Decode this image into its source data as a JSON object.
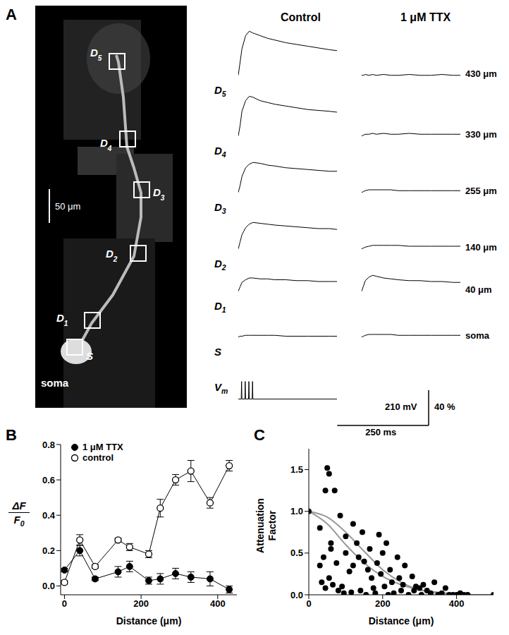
{
  "panels": [
    "A",
    "B",
    "C"
  ],
  "image": {
    "roi_labels": [
      "D5",
      "D4",
      "D3",
      "D2",
      "D1",
      "S"
    ],
    "soma_label": "soma",
    "scale_bar": {
      "value": 50,
      "label": "50 μm"
    }
  },
  "chart_data": [
    {
      "type": "line",
      "label": "A",
      "columns": [
        "Control",
        "1 μM TTX"
      ],
      "tick_labels": false,
      "color": "#000000",
      "x": [
        0,
        5,
        10,
        20,
        30,
        40,
        60,
        80,
        100,
        130,
        160,
        190,
        220,
        250,
        270
      ],
      "xlim": [
        0,
        270
      ],
      "ylim": [
        -5,
        55
      ],
      "traces": [
        {
          "name": "D5",
          "distance": "430 μm",
          "control": [
            0,
            15,
            30,
            45,
            50,
            48,
            45,
            42,
            40,
            37,
            35,
            33,
            31,
            29,
            28
          ],
          "ttx": [
            0,
            0,
            1,
            0,
            1,
            0,
            1,
            0,
            0,
            1,
            0,
            0,
            1,
            0,
            0
          ]
        },
        {
          "name": "D4",
          "distance": "330 μm",
          "control": [
            0,
            12,
            28,
            40,
            45,
            44,
            40,
            38,
            36,
            34,
            32,
            30,
            29,
            28,
            27
          ],
          "ttx": [
            0,
            1,
            2,
            2,
            3,
            2,
            3,
            2,
            2,
            3,
            2,
            2,
            2,
            2,
            2
          ]
        },
        {
          "name": "D3",
          "distance": "255 μm",
          "control": [
            0,
            8,
            18,
            28,
            32,
            34,
            33,
            31,
            30,
            28,
            27,
            26,
            25,
            24,
            24
          ],
          "ttx": [
            0,
            1,
            2,
            3,
            3,
            3,
            3,
            3,
            2,
            2,
            2,
            2,
            2,
            2,
            2
          ]
        },
        {
          "name": "D2",
          "distance": "140 μm",
          "control": [
            0,
            8,
            16,
            24,
            28,
            30,
            29,
            28,
            27,
            26,
            25,
            24,
            23,
            23,
            22
          ],
          "ttx": [
            0,
            1,
            2,
            3,
            4,
            4,
            4,
            4,
            4,
            3,
            3,
            3,
            3,
            3,
            3
          ]
        },
        {
          "name": "D1",
          "distance": "40 μm",
          "control": [
            0,
            5,
            10,
            13,
            15,
            15,
            14,
            14,
            13,
            13,
            12,
            12,
            11,
            11,
            11
          ],
          "ttx": [
            0,
            6,
            12,
            16,
            18,
            17,
            15,
            14,
            13,
            12,
            12,
            11,
            11,
            10,
            10
          ]
        },
        {
          "name": "S",
          "distance": "soma",
          "control": [
            0,
            1,
            1,
            2,
            2,
            2,
            2,
            2,
            2,
            1,
            1,
            1,
            1,
            1,
            1
          ],
          "ttx": [
            0,
            1,
            2,
            3,
            3,
            3,
            3,
            3,
            2,
            2,
            2,
            2,
            2,
            2,
            2
          ]
        }
      ],
      "vm": {
        "name": "Vm",
        "x": [
          0,
          8,
          9,
          10,
          18,
          19,
          20,
          28,
          29,
          30,
          38,
          39,
          40,
          270
        ],
        "values": [
          -65,
          -65,
          40,
          -65,
          -65,
          40,
          -65,
          -65,
          40,
          -65,
          -65,
          40,
          -65,
          -65
        ],
        "ylim": [
          -75,
          93
        ]
      },
      "scale_bars": [
        {
          "value": 210,
          "label": "210 mV"
        },
        {
          "value": 40,
          "label": "40 %"
        },
        {
          "value": 250,
          "label": "250 ms"
        }
      ]
    },
    {
      "type": "line",
      "label": "B",
      "x_label": "Distance (μm)",
      "y_label": {
        "numerator": "ΔF",
        "denominator": "F0"
      },
      "legend": "upper left",
      "xlim": [
        -10,
        450
      ],
      "xticks": [
        0,
        200,
        400
      ],
      "ylim": [
        -0.05,
        0.8
      ],
      "yticks": [
        {
          "value": 0,
          "label": "0.0"
        },
        {
          "value": 0.2,
          "label": "0.2"
        },
        {
          "value": 0.4,
          "label": "0.4"
        },
        {
          "value": 0.6,
          "label": "0.6"
        },
        {
          "value": 0.8,
          "label": "0.8"
        }
      ],
      "x": [
        0,
        40,
        80,
        140,
        170,
        220,
        250,
        290,
        330,
        380,
        430
      ],
      "series": [
        {
          "name": "1 μM TTX",
          "color": "#000000",
          "marker": "filled circle",
          "values": [
            0.09,
            0.2,
            0.04,
            0.08,
            0.11,
            0.03,
            0.04,
            0.07,
            0.05,
            0.04,
            -0.02
          ],
          "errors": [
            0.01,
            0.03,
            0.01,
            0.03,
            0.03,
            0.02,
            0.03,
            0.03,
            0.03,
            0.04,
            0.02
          ]
        },
        {
          "name": "control",
          "color": "#000000",
          "marker": "open circle",
          "values": [
            0.02,
            0.26,
            0.11,
            0.26,
            0.22,
            0.18,
            0.44,
            0.6,
            0.65,
            0.47,
            0.68
          ],
          "errors": [
            0.01,
            0.03,
            0.01,
            0.01,
            0.02,
            0.02,
            0.05,
            0.03,
            0.06,
            0.03,
            0.03
          ]
        }
      ]
    },
    {
      "type": "scatter",
      "label": "C",
      "x_label": "Distance (μm)",
      "y_label": "Attenuation Factor",
      "xlim": [
        0,
        500
      ],
      "xticks": [
        0,
        200,
        400
      ],
      "ylim": [
        0,
        1.75
      ],
      "yticks": [
        {
          "value": 0,
          "label": "0.0"
        },
        {
          "value": 0.5,
          "label": "0.5"
        },
        {
          "value": 1,
          "label": "1.0"
        },
        {
          "value": 1.5,
          "label": "1.5"
        }
      ],
      "series": [
        {
          "type": "scatter",
          "color": "#000000",
          "marker": "filled circle",
          "x": [
            0,
            30,
            30,
            35,
            40,
            45,
            45,
            50,
            55,
            55,
            60,
            60,
            65,
            70,
            75,
            80,
            85,
            90,
            95,
            100,
            100,
            110,
            115,
            120,
            120,
            130,
            135,
            140,
            145,
            150,
            155,
            160,
            165,
            170,
            175,
            180,
            185,
            190,
            195,
            200,
            205,
            210,
            215,
            220,
            225,
            230,
            240,
            245,
            250,
            255,
            260,
            270,
            280,
            285,
            290,
            300,
            305,
            310,
            320,
            330,
            340,
            350,
            360,
            370,
            380,
            390,
            400,
            410,
            420,
            430,
            500
          ],
          "values": [
            1.0,
            0.8,
            0.35,
            0.15,
            0.45,
            0.08,
            1.25,
            1.52,
            1.45,
            0.2,
            0.55,
            0.62,
            0.12,
            1.25,
            0.38,
            0.05,
            0.95,
            0.1,
            0.02,
            0.5,
            0.7,
            0.28,
            0.03,
            0.35,
            0.85,
            0.62,
            0.45,
            0.05,
            0.75,
            0.4,
            0.0,
            0.3,
            0.55,
            0.2,
            0.08,
            0.02,
            0.38,
            0.72,
            0.25,
            0.5,
            0.1,
            0.62,
            0.0,
            0.3,
            0.15,
            0.02,
            0.45,
            0.2,
            0.05,
            0.12,
            0.35,
            0.0,
            0.22,
            0.05,
            0.1,
            0.08,
            0.0,
            0.12,
            0.05,
            0.02,
            0.15,
            0.0,
            0.02,
            0.08,
            0.0,
            0.0,
            0.0,
            0.02,
            0.0,
            0.0,
            0.0
          ]
        },
        {
          "type": "line",
          "color": "#999999",
          "x": [
            0,
            50,
            100,
            150,
            200,
            250,
            300,
            350,
            400,
            450,
            500
          ],
          "values": [
            1.0,
            0.93,
            0.75,
            0.52,
            0.3,
            0.15,
            0.06,
            0.02,
            0.01,
            0,
            0
          ]
        },
        {
          "type": "line",
          "color": "#999999",
          "x": [
            0,
            50,
            100,
            150,
            200,
            250,
            300,
            350,
            400,
            450,
            500
          ],
          "values": [
            1.0,
            0.85,
            0.6,
            0.38,
            0.22,
            0.12,
            0.06,
            0.03,
            0.01,
            0,
            0
          ]
        }
      ]
    }
  ]
}
